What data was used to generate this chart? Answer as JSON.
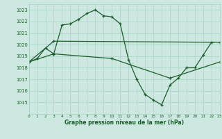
{
  "bg_color": "#cce8e0",
  "grid_color": "#a8d4cb",
  "line_color": "#1a5c2a",
  "text_color": "#1a5c2a",
  "xlabel": "Graphe pression niveau de la mer (hPa)",
  "ylim": [
    1014.0,
    1023.5
  ],
  "xlim": [
    0,
    23
  ],
  "yticks": [
    1015,
    1016,
    1017,
    1018,
    1019,
    1020,
    1021,
    1022,
    1023
  ],
  "xticks": [
    0,
    1,
    2,
    3,
    4,
    5,
    6,
    7,
    8,
    9,
    10,
    11,
    12,
    13,
    14,
    15,
    16,
    17,
    18,
    19,
    20,
    21,
    22,
    23
  ],
  "series1_x": [
    0,
    1,
    2,
    3,
    4,
    5,
    6,
    7,
    8,
    9,
    10,
    11,
    12,
    13,
    14,
    15,
    16,
    17,
    18,
    19,
    20,
    21,
    22
  ],
  "series1_y": [
    1018.5,
    1018.8,
    1019.7,
    1019.2,
    1021.7,
    1021.8,
    1022.2,
    1022.7,
    1023.0,
    1022.5,
    1022.4,
    1021.8,
    1018.7,
    1017.0,
    1015.7,
    1015.2,
    1014.8,
    1016.5,
    1017.1,
    1018.0,
    1018.0,
    1019.1,
    1020.2
  ],
  "series2_x": [
    0,
    3,
    23
  ],
  "series2_y": [
    1018.5,
    1020.3,
    1020.2
  ],
  "series3_x": [
    0,
    3,
    10,
    17,
    23
  ],
  "series3_y": [
    1018.5,
    1019.2,
    1018.8,
    1017.1,
    1018.5
  ]
}
